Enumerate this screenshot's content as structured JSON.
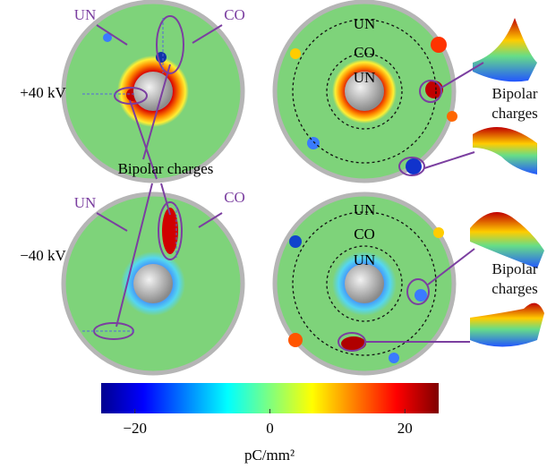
{
  "row_labels": [
    "+40 kV",
    "−40 kV"
  ],
  "panels": [
    {
      "labels": [
        "UN",
        "CO"
      ]
    },
    {
      "labels": [
        "UN",
        "CO",
        "UN"
      ]
    },
    {
      "labels": [
        "UN",
        "CO"
      ]
    },
    {
      "labels": [
        "UN",
        "CO",
        "UN"
      ]
    }
  ],
  "callouts": [
    "Bipolar charges",
    "Bipolar charges",
    "Bipolar charges"
  ],
  "colorbar": {
    "label": "pC/mm²",
    "lim": [
      -25,
      25
    ],
    "ticks": [
      {
        "value": -20,
        "label": "−20"
      },
      0,
      20
    ]
  }
}
